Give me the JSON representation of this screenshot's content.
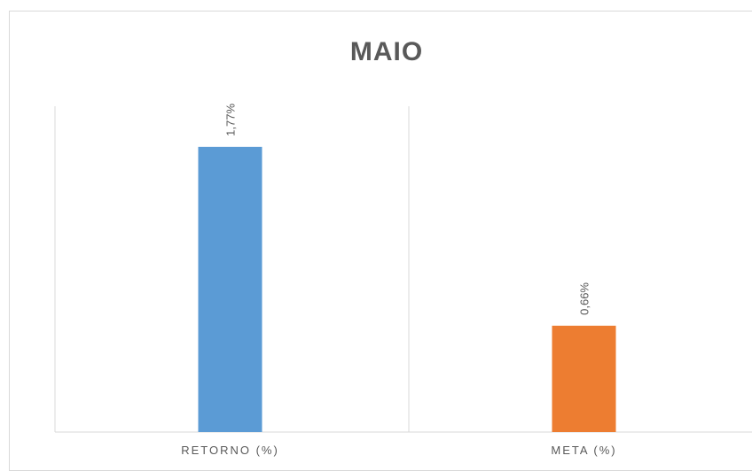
{
  "chart_data": {
    "type": "bar",
    "title": "MAIO",
    "categories": [
      "RETORNO (%)",
      "META (%)"
    ],
    "values": [
      1.77,
      0.66
    ],
    "data_labels": [
      "1,77%",
      "0,66%"
    ],
    "colors": [
      "#5b9bd5",
      "#ed7d31"
    ],
    "ylim": [
      0,
      2
    ],
    "xlabel": "",
    "ylabel": "",
    "grid": "vertical category separators",
    "legend": "none"
  }
}
